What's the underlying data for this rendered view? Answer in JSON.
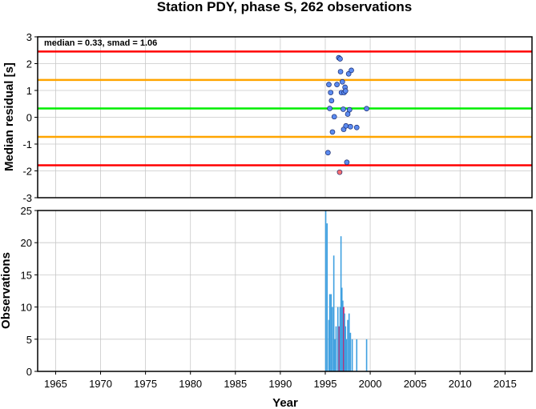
{
  "chart_data": [
    {
      "type": "scatter",
      "title": "Station PDY, phase S, 262 observations",
      "xlabel": "",
      "ylabel": "Median residual [s]",
      "xlim": [
        1963,
        2018
      ],
      "ylim": [
        -3,
        3
      ],
      "x_ticks": [
        1965,
        1970,
        1975,
        1980,
        1985,
        1990,
        1995,
        2000,
        2005,
        2010,
        2015
      ],
      "y_ticks": [
        -3,
        -2,
        -1,
        0,
        1,
        2,
        3
      ],
      "grid": true,
      "annotation": "median = 0.33, smad = 1.06",
      "reference_lines": [
        {
          "y": 2.45,
          "color": "#ff0000"
        },
        {
          "y": 1.39,
          "color": "#ffa500"
        },
        {
          "y": 0.33,
          "color": "#00ee00"
        },
        {
          "y": -0.73,
          "color": "#ffa500"
        },
        {
          "y": -1.79,
          "color": "#ff0000"
        }
      ],
      "point_colors": {
        "inside": "#5b8bf0",
        "outside": "#ff6f6f"
      },
      "points": [
        {
          "x": 1995.3,
          "y": -1.32
        },
        {
          "x": 1995.4,
          "y": 1.22
        },
        {
          "x": 1995.5,
          "y": 0.33
        },
        {
          "x": 1995.6,
          "y": 0.92
        },
        {
          "x": 1995.7,
          "y": 0.62
        },
        {
          "x": 1995.8,
          "y": -0.55
        },
        {
          "x": 1996.0,
          "y": 0.02
        },
        {
          "x": 1996.3,
          "y": 1.22
        },
        {
          "x": 1996.5,
          "y": 2.22
        },
        {
          "x": 1996.65,
          "y": 2.18
        },
        {
          "x": 1996.7,
          "y": 1.7
        },
        {
          "x": 1996.8,
          "y": 0.92
        },
        {
          "x": 1996.9,
          "y": 1.32
        },
        {
          "x": 1997.0,
          "y": 0.3
        },
        {
          "x": 1997.05,
          "y": -0.45
        },
        {
          "x": 1997.1,
          "y": 0.92
        },
        {
          "x": 1997.2,
          "y": 1.12
        },
        {
          "x": 1997.25,
          "y": 0.98
        },
        {
          "x": 1997.3,
          "y": -0.32
        },
        {
          "x": 1997.4,
          "y": -1.68
        },
        {
          "x": 1997.5,
          "y": 0.12
        },
        {
          "x": 1997.6,
          "y": 1.62
        },
        {
          "x": 1997.7,
          "y": 0.28
        },
        {
          "x": 1997.8,
          "y": -0.35
        },
        {
          "x": 1997.9,
          "y": 1.75
        },
        {
          "x": 1998.5,
          "y": -0.38
        },
        {
          "x": 1999.6,
          "y": 0.32
        },
        {
          "x": 1996.6,
          "y": -2.05,
          "outlier": true
        }
      ]
    },
    {
      "type": "bar",
      "xlabel": "Year",
      "ylabel": "Observations",
      "xlim": [
        1963,
        2018
      ],
      "ylim": [
        0,
        25
      ],
      "x_ticks": [
        1965,
        1970,
        1975,
        1980,
        1985,
        1990,
        1995,
        2000,
        2005,
        2010,
        2015
      ],
      "y_ticks": [
        0,
        5,
        10,
        15,
        20,
        25
      ],
      "grid": true,
      "bar_colors": {
        "normal": "#3fa0e0",
        "highlight": "#c8206a"
      },
      "bars": [
        {
          "x": 1995.05,
          "value": 25
        },
        {
          "x": 1995.2,
          "value": 23
        },
        {
          "x": 1995.4,
          "value": 8
        },
        {
          "x": 1995.5,
          "value": 12
        },
        {
          "x": 1995.65,
          "value": 12
        },
        {
          "x": 1995.8,
          "value": 10
        },
        {
          "x": 1995.95,
          "value": 18
        },
        {
          "x": 1996.05,
          "value": 5
        },
        {
          "x": 1996.2,
          "value": 7
        },
        {
          "x": 1996.4,
          "value": 10
        },
        {
          "x": 1996.55,
          "value": 7,
          "highlight": true
        },
        {
          "x": 1996.65,
          "value": 10
        },
        {
          "x": 1996.75,
          "value": 21
        },
        {
          "x": 1996.85,
          "value": 13
        },
        {
          "x": 1996.95,
          "value": 11
        },
        {
          "x": 1997.05,
          "value": 10,
          "highlight": true
        },
        {
          "x": 1997.15,
          "value": 9
        },
        {
          "x": 1997.25,
          "value": 7
        },
        {
          "x": 1997.35,
          "value": 5
        },
        {
          "x": 1997.5,
          "value": 8
        },
        {
          "x": 1997.65,
          "value": 9
        },
        {
          "x": 1997.8,
          "value": 6
        },
        {
          "x": 1998.0,
          "value": 5
        },
        {
          "x": 1998.5,
          "value": 5
        },
        {
          "x": 1999.6,
          "value": 5
        }
      ]
    }
  ]
}
